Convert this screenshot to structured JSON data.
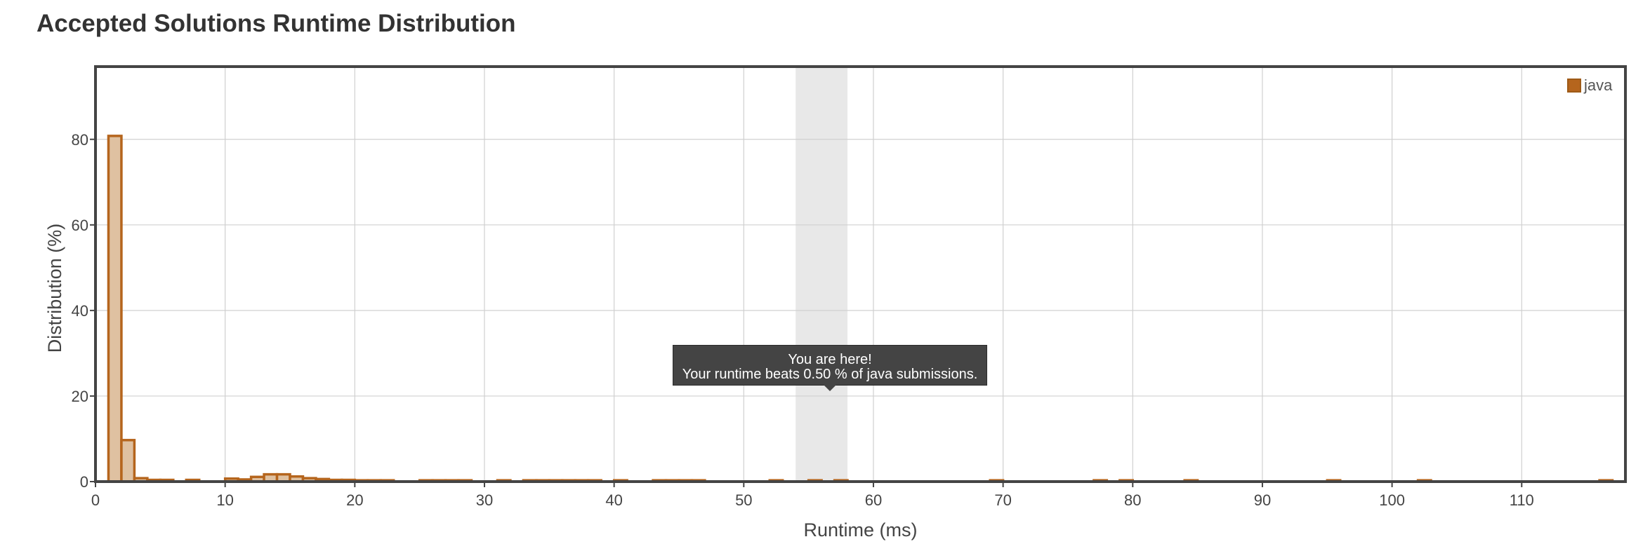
{
  "page": {
    "title": "Accepted Solutions Runtime Distribution"
  },
  "legend": {
    "label": "java",
    "color": "#b5651d"
  },
  "tooltip": {
    "line1": "You are here!",
    "line2": "Your runtime beats 0.50 % of java submissions."
  },
  "chart_data": {
    "type": "bar",
    "xlabel": "Runtime (ms)",
    "ylabel": "Distribution (%)",
    "xlim": [
      0,
      118
    ],
    "ylim": [
      0,
      97
    ],
    "xticks": [
      0,
      10,
      20,
      30,
      40,
      50,
      60,
      70,
      80,
      90,
      100,
      110
    ],
    "yticks": [
      0,
      20,
      40,
      60,
      80
    ],
    "grid": true,
    "legend_position": "top-right",
    "highlight_range": [
      54,
      58
    ],
    "bar_width": 1,
    "series": [
      {
        "name": "java",
        "color": "#b5651d",
        "fill": "#dfc1a1",
        "x": [
          1,
          2,
          3,
          4,
          5,
          7,
          10,
          11,
          12,
          13,
          14,
          15,
          16,
          17,
          18,
          19,
          20,
          21,
          22,
          25,
          26,
          27,
          28,
          31,
          33,
          34,
          35,
          36,
          37,
          38,
          40,
          43,
          44,
          45,
          46,
          52,
          55,
          57,
          69,
          77,
          79,
          84,
          95,
          102,
          116
        ],
        "values": [
          80.8,
          9.7,
          0.8,
          0.4,
          0.4,
          0.4,
          0.7,
          0.5,
          1.1,
          1.7,
          1.7,
          1.2,
          0.8,
          0.6,
          0.4,
          0.4,
          0.3,
          0.3,
          0.3,
          0.3,
          0.3,
          0.3,
          0.3,
          0.3,
          0.3,
          0.3,
          0.3,
          0.3,
          0.3,
          0.3,
          0.3,
          0.3,
          0.3,
          0.3,
          0.3,
          0.3,
          0.3,
          0.3,
          0.3,
          0.3,
          0.3,
          0.3,
          0.3,
          0.3,
          0.3
        ]
      }
    ]
  }
}
